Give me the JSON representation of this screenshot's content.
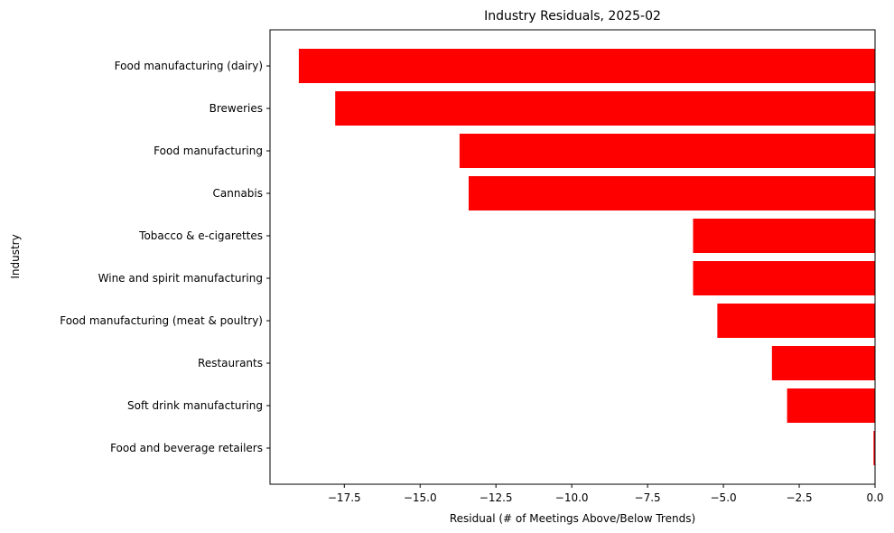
{
  "chart_data": {
    "type": "bar",
    "orientation": "horizontal",
    "title": "Industry Residuals, 2025-02",
    "xlabel": "Residual (# of Meetings Above/Below Trends)",
    "ylabel": "Industry",
    "bar_color": "#ff0000",
    "xlim": [
      -19.95,
      0
    ],
    "xticks": [
      -17.5,
      -15.0,
      -12.5,
      -10.0,
      -7.5,
      -5.0,
      -2.5,
      0.0
    ],
    "xtick_labels": [
      "−17.5",
      "−15.0",
      "−12.5",
      "−10.0",
      "−7.5",
      "−5.0",
      "−2.5",
      "0.0"
    ],
    "grid": false,
    "categories": [
      "Food manufacturing (dairy)",
      "Breweries",
      "Food manufacturing",
      "Cannabis",
      "Tobacco & e-cigarettes",
      "Wine and spirit manufacturing",
      "Food manufacturing (meat & poultry)",
      "Restaurants",
      "Soft drink manufacturing",
      "Food and beverage retailers"
    ],
    "values": [
      -19.0,
      -17.8,
      -13.7,
      -13.4,
      -6.0,
      -6.0,
      -5.2,
      -3.4,
      -2.9,
      -0.05
    ]
  }
}
